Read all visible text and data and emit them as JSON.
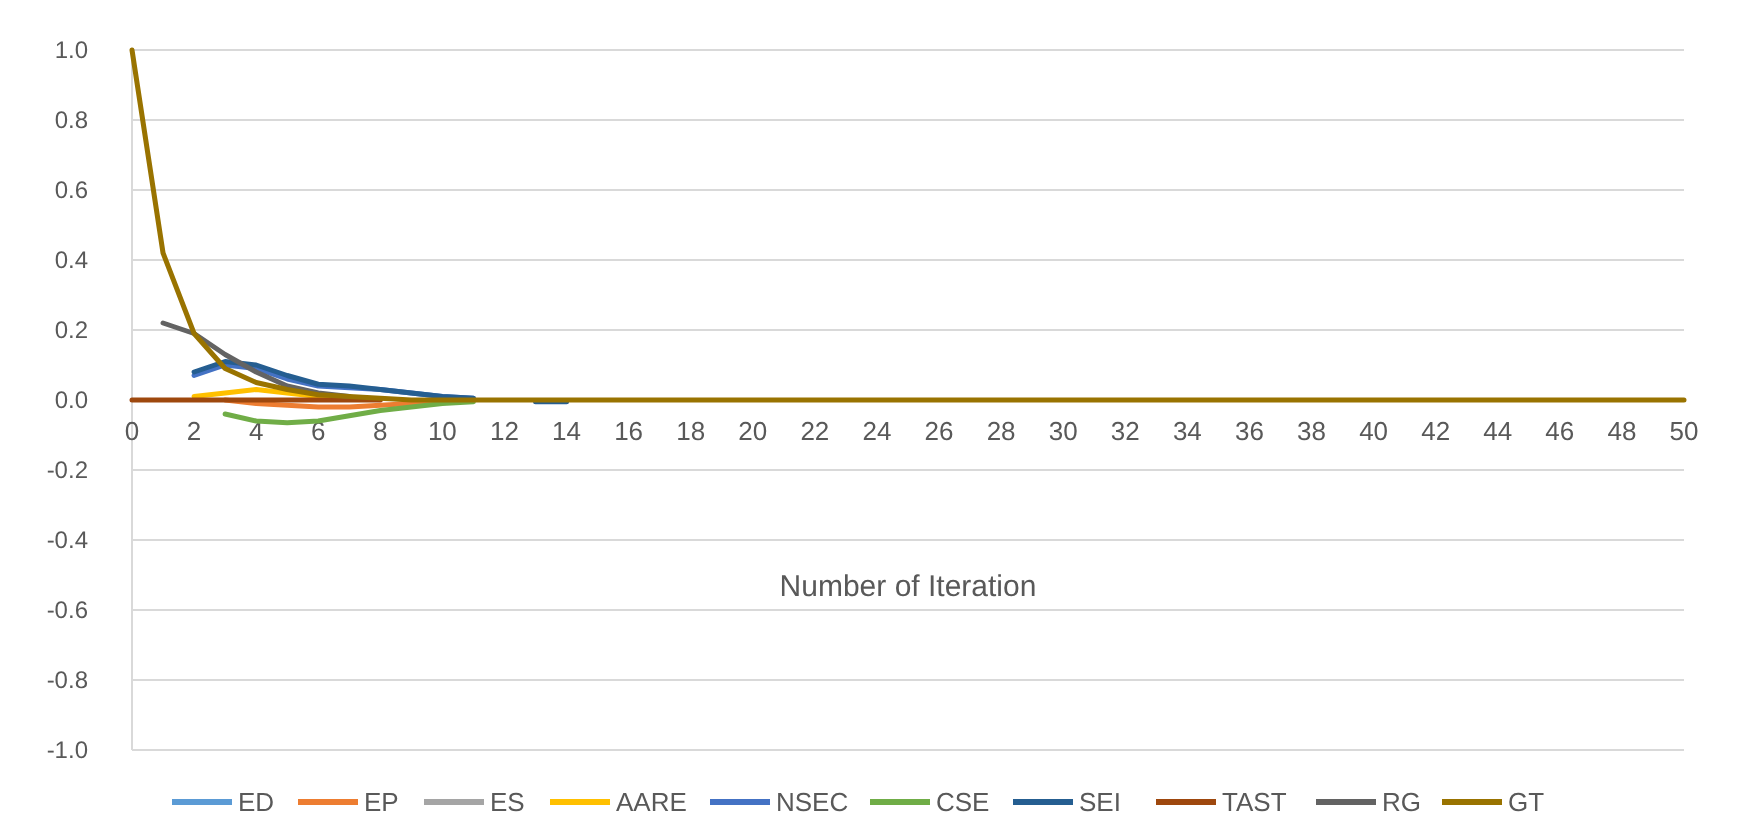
{
  "chart_data": {
    "type": "line",
    "xlabel": "Number of Iteration",
    "x": [
      0,
      1,
      2,
      3,
      4,
      5,
      6,
      7,
      8,
      9,
      10,
      11,
      12,
      13,
      14,
      15,
      16,
      17,
      18,
      19,
      20,
      21,
      22,
      23,
      24,
      25,
      26,
      27,
      28,
      29,
      30,
      31,
      32,
      33,
      34,
      35,
      36,
      37,
      38,
      39,
      40,
      41,
      42,
      43,
      44,
      45,
      46,
      47,
      48,
      49,
      50
    ],
    "xlim": [
      0,
      50
    ],
    "xticks": [
      0,
      2,
      4,
      6,
      8,
      10,
      12,
      14,
      16,
      18,
      20,
      22,
      24,
      26,
      28,
      30,
      32,
      34,
      36,
      38,
      40,
      42,
      44,
      46,
      48,
      50
    ],
    "ylim": [
      -1,
      1
    ],
    "yticks": [
      {
        "value": -1,
        "label": "-1.0"
      },
      {
        "value": -0.8,
        "label": "-0.8"
      },
      {
        "value": -0.6,
        "label": "-0.6"
      },
      {
        "value": -0.4,
        "label": "-0.4"
      },
      {
        "value": -0.2,
        "label": "-0.2"
      },
      {
        "value": 0,
        "label": "0.0"
      },
      {
        "value": 0.2,
        "label": "0.2"
      },
      {
        "value": 0.4,
        "label": "0.4"
      },
      {
        "value": 0.6,
        "label": "0.6"
      },
      {
        "value": 0.8,
        "label": "0.8"
      },
      {
        "value": 1,
        "label": "1.0"
      }
    ],
    "grid": "y",
    "legend": "bottom",
    "marker": "none",
    "line_style": "solid",
    "series": [
      {
        "name": "ED",
        "color": "#5b9bd5",
        "values": [
          null,
          null,
          null,
          null,
          null,
          null,
          null,
          null,
          null,
          null,
          null,
          null,
          null,
          null,
          null,
          null,
          null,
          null,
          null,
          null,
          null,
          null,
          null,
          null,
          null,
          null,
          null,
          null,
          null,
          null,
          null,
          null,
          null,
          null,
          null,
          null,
          null,
          null,
          null,
          null,
          null,
          null,
          null,
          null,
          null,
          null,
          null,
          null,
          null,
          null,
          null
        ]
      },
      {
        "name": "EP",
        "color": "#ed7d31",
        "values": [
          null,
          null,
          null,
          0,
          -0.01,
          -0.015,
          -0.02,
          -0.02,
          -0.015,
          -0.01,
          -0.005,
          null,
          null,
          null,
          null,
          null,
          null,
          null,
          null,
          null,
          null,
          null,
          null,
          null,
          null,
          null,
          null,
          null,
          null,
          null,
          null,
          null,
          null,
          null,
          null,
          null,
          null,
          null,
          null,
          null,
          null,
          null,
          null,
          null,
          null,
          null,
          null,
          null,
          null,
          null,
          null
        ]
      },
      {
        "name": "ES",
        "color": "#a5a5a5",
        "values": [
          null,
          null,
          null,
          null,
          null,
          null,
          null,
          null,
          null,
          null,
          null,
          null,
          null,
          null,
          null,
          null,
          null,
          null,
          null,
          null,
          null,
          null,
          null,
          null,
          null,
          null,
          null,
          null,
          null,
          null,
          null,
          null,
          null,
          null,
          null,
          null,
          null,
          null,
          null,
          null,
          null,
          null,
          null,
          null,
          null,
          null,
          null,
          null,
          null,
          null,
          null
        ]
      },
      {
        "name": "AARE",
        "color": "#ffc000",
        "values": [
          null,
          null,
          0.01,
          0.02,
          0.03,
          0.02,
          0.01,
          0.005,
          null,
          null,
          null,
          null,
          null,
          null,
          null,
          null,
          null,
          null,
          null,
          null,
          null,
          null,
          null,
          null,
          null,
          null,
          null,
          null,
          null,
          null,
          null,
          null,
          null,
          null,
          null,
          null,
          null,
          null,
          null,
          null,
          null,
          null,
          null,
          null,
          null,
          null,
          null,
          null,
          null,
          null,
          null
        ]
      },
      {
        "name": "NSEC",
        "color": "#4472c4",
        "values": [
          null,
          null,
          0.07,
          0.1,
          0.09,
          0.06,
          0.04,
          0.035,
          0.03,
          0.02,
          0.01,
          0.005,
          null,
          null,
          null,
          null,
          null,
          null,
          null,
          null,
          null,
          null,
          null,
          null,
          null,
          null,
          null,
          null,
          null,
          null,
          null,
          null,
          null,
          null,
          null,
          null,
          null,
          null,
          null,
          null,
          null,
          null,
          null,
          null,
          null,
          null,
          null,
          null,
          null,
          null,
          null
        ]
      },
      {
        "name": "CSE",
        "color": "#70ad47",
        "values": [
          null,
          null,
          null,
          -0.04,
          -0.06,
          -0.065,
          -0.06,
          -0.045,
          -0.03,
          -0.02,
          -0.01,
          -0.005,
          null,
          null,
          null,
          null,
          null,
          null,
          null,
          null,
          null,
          null,
          null,
          null,
          null,
          null,
          null,
          null,
          null,
          null,
          null,
          null,
          null,
          null,
          null,
          null,
          null,
          null,
          null,
          null,
          null,
          null,
          null,
          null,
          null,
          null,
          null,
          null,
          null,
          null,
          null
        ]
      },
      {
        "name": "SEI",
        "color": "#255e91",
        "values": [
          null,
          null,
          0.08,
          0.11,
          0.1,
          0.07,
          0.045,
          0.04,
          0.03,
          0.02,
          0.01,
          0.005,
          null,
          -0.005,
          -0.005,
          null,
          null,
          null,
          null,
          null,
          null,
          null,
          null,
          null,
          null,
          null,
          null,
          null,
          null,
          null,
          null,
          null,
          null,
          null,
          null,
          null,
          null,
          null,
          null,
          null,
          null,
          null,
          null,
          null,
          null,
          null,
          null,
          null,
          null,
          null,
          null
        ]
      },
      {
        "name": "TAST",
        "color": "#9e480e",
        "values": [
          0,
          0,
          0,
          0,
          0,
          0,
          0,
          0,
          0,
          null,
          null,
          null,
          null,
          null,
          null,
          null,
          null,
          null,
          null,
          null,
          null,
          null,
          null,
          null,
          null,
          null,
          null,
          null,
          null,
          null,
          null,
          null,
          null,
          null,
          null,
          null,
          null,
          null,
          null,
          null,
          null,
          null,
          null,
          null,
          null,
          null,
          null,
          null,
          null,
          null,
          null
        ]
      },
      {
        "name": "RG",
        "color": "#636363",
        "values": [
          null,
          0.22,
          0.19,
          0.13,
          0.08,
          0.04,
          0.02,
          0.01,
          null,
          null,
          null,
          null,
          null,
          null,
          null,
          null,
          null,
          null,
          null,
          null,
          null,
          null,
          null,
          null,
          null,
          null,
          null,
          null,
          null,
          null,
          null,
          null,
          null,
          null,
          null,
          null,
          null,
          null,
          null,
          null,
          null,
          null,
          null,
          null,
          null,
          null,
          null,
          null,
          null,
          null,
          null
        ]
      },
      {
        "name": "GT",
        "color": "#997300",
        "values": [
          1,
          0.42,
          0.19,
          0.09,
          0.05,
          0.03,
          0.015,
          0.01,
          0.005,
          0,
          0,
          0,
          0,
          0,
          0,
          0,
          0,
          0,
          0,
          0,
          0,
          0,
          0,
          0,
          0,
          0,
          0,
          0,
          0,
          0,
          0,
          0,
          0,
          0,
          0,
          0,
          0,
          0,
          0,
          0,
          0,
          0,
          0,
          0,
          0,
          0,
          0,
          0,
          0,
          0,
          0
        ]
      }
    ]
  }
}
